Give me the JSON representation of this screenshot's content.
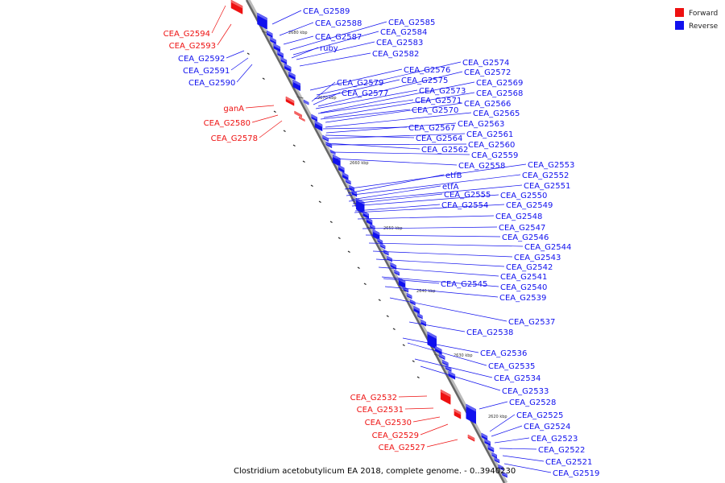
{
  "legend": [
    {
      "label": "Forward",
      "color": "#ee1111"
    },
    {
      "label": "Reverse",
      "color": "#1111ee"
    }
  ],
  "caption": "Clostridium acetobutylicum EA 2018, complete genome. - 0..3940230",
  "colors": {
    "forward": "#ee1111",
    "reverse": "#1111ee",
    "backbone": "#777777",
    "backbone_edge": "#aaaaaa"
  },
  "ticks": [
    "2680 kbp",
    "2670 kbp",
    "2660 kbp",
    "2650 kbp",
    "2640 kbp",
    "2630 kbp",
    "2620 kbp"
  ],
  "reverse_labels": [
    "CEA_G2589",
    "CEA_G2588",
    "CEA_G2587",
    "ruby",
    "CEA_G2585",
    "CEA_G2584",
    "CEA_G2583",
    "CEA_G2582",
    "CEA_G2576",
    "CEA_G2574",
    "CEA_G2575",
    "CEA_G2572",
    "CEA_G2579",
    "CEA_G2569",
    "CEA_G2573",
    "CEA_G2577",
    "CEA_G2568",
    "CEA_G2571",
    "CEA_G2566",
    "CEA_G2570",
    "CEA_G2565",
    "CEA_G2563",
    "CEA_G2567",
    "CEA_G2561",
    "CEA_G2564",
    "CEA_G2560",
    "CEA_G2562",
    "CEA_G2559",
    "CEA_G2558",
    "CEA_G2553",
    "CEA_G2552",
    "etfB",
    "CEA_G2551",
    "etfA",
    "CEA_G2550",
    "CEA_G2555",
    "CEA_G2549",
    "CEA_G2554",
    "CEA_G2548",
    "CEA_G2547",
    "CEA_G2546",
    "CEA_G2544",
    "CEA_G2543",
    "CEA_G2542",
    "CEA_G2541",
    "CEA_G2545",
    "CEA_G2540",
    "CEA_G2539",
    "CEA_G2537",
    "CEA_G2538",
    "CEA_G2536",
    "CEA_G2535",
    "CEA_G2534",
    "CEA_G2533",
    "CEA_G2528",
    "CEA_G2525",
    "CEA_G2524",
    "CEA_G2523",
    "CEA_G2522",
    "CEA_G2521",
    "CEA_G2519",
    "CEA_G2592",
    "CEA_G2591",
    "CEA_G2590"
  ],
  "forward_labels": [
    "CEA_G2594",
    "CEA_G2593",
    "ganA",
    "CEA_G2580",
    "CEA_G2578",
    "CEA_G2532",
    "CEA_G2531",
    "CEA_G2530",
    "CEA_G2529",
    "CEA_G2527"
  ]
}
